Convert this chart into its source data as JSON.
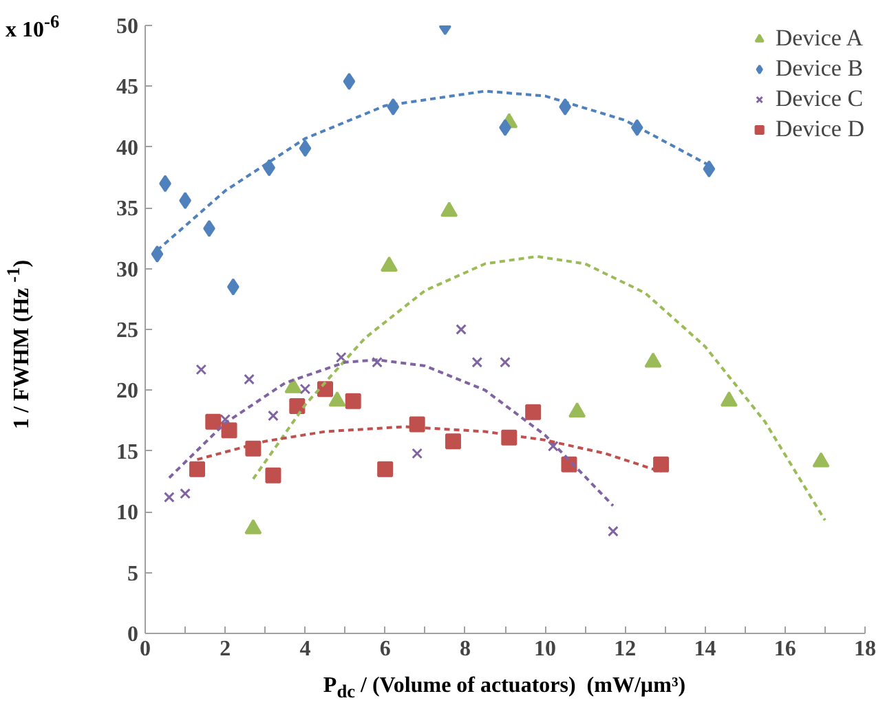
{
  "chart_data": {
    "type": "scatter",
    "xlabel": "P$_{dc}$ / (Volume of actuators)   (mW/µm³)",
    "ylabel": "1 / FWHM (Hz $^{-1}$)",
    "annotations": [
      "x 10$^{-6}$"
    ],
    "xlim": [
      0,
      18
    ],
    "ylim": [
      0,
      50
    ],
    "xticks": [
      0,
      {
        "value": 1,
        "label": null
      },
      2,
      {
        "value": 3,
        "label": null
      },
      4,
      {
        "value": 5,
        "label": null
      },
      6,
      {
        "value": 7,
        "label": null
      },
      8,
      {
        "value": 9,
        "label": null
      },
      10,
      {
        "value": 11,
        "label": null
      },
      12,
      {
        "value": 13,
        "label": null
      },
      14,
      {
        "value": 15,
        "label": null
      },
      16,
      {
        "value": 17,
        "label": null
      },
      18
    ],
    "yticks": [
      0,
      5,
      10,
      15,
      20,
      25,
      30,
      35,
      40,
      45,
      50
    ],
    "grid": false,
    "legend": "top right",
    "series": [
      {
        "name": "Device A",
        "marker": "triangle",
        "color": "#9bbb59",
        "x": [
          2.7,
          3.7,
          4.8,
          6.1,
          7.6,
          9.1,
          10.8,
          12.7,
          14.6,
          16.9
        ],
        "values": [
          8.6,
          20.2,
          19.1,
          30.2,
          34.7,
          42.0,
          18.2,
          22.3,
          19.1,
          14.1
        ]
      },
      {
        "name": "Device B",
        "marker": "diamond",
        "color": "#4f81bd",
        "x": [
          0.3,
          0.5,
          1.0,
          1.6,
          2.2,
          3.1,
          4.0,
          5.1,
          6.2,
          7.5,
          9.0,
          10.5,
          12.3,
          14.1
        ],
        "values": [
          31.2,
          37.0,
          35.6,
          33.3,
          28.5,
          38.3,
          39.9,
          45.4,
          43.3,
          49.9,
          41.6,
          43.3,
          41.6,
          38.2
        ]
      },
      {
        "name": "Device C",
        "marker": "cross",
        "color": "#8064a2",
        "x": [
          0.6,
          1.0,
          1.4,
          2.0,
          2.6,
          3.2,
          4.0,
          4.9,
          5.8,
          6.8,
          7.9,
          8.3,
          9.0,
          10.2,
          11.7
        ],
        "values": [
          11.2,
          11.5,
          21.7,
          17.6,
          20.9,
          17.9,
          20.1,
          22.7,
          22.3,
          14.8,
          25.0,
          22.3,
          22.3,
          15.4,
          8.4
        ]
      },
      {
        "name": "Device D",
        "marker": "square",
        "color": "#c0504d",
        "x": [
          1.3,
          1.7,
          2.1,
          2.7,
          3.2,
          3.8,
          4.5,
          5.2,
          6.0,
          6.8,
          7.7,
          9.1,
          9.7,
          10.6,
          12.9
        ],
        "values": [
          13.5,
          17.4,
          16.7,
          15.2,
          13.0,
          18.7,
          20.1,
          19.1,
          13.5,
          17.2,
          15.8,
          16.1,
          18.2,
          13.9,
          13.9
        ]
      },
      {
        "type": "line",
        "marker": "none",
        "line_style": "dashed",
        "color": "#9bbb59",
        "x": [
          2.7,
          4,
          5.5,
          7,
          8.5,
          9.8,
          11,
          12.5,
          14,
          15.5,
          17
        ],
        "values": [
          12.7,
          18.8,
          24.3,
          28.2,
          30.4,
          31,
          30.4,
          28,
          23.6,
          17.4,
          9.3
        ]
      },
      {
        "type": "line",
        "marker": "none",
        "line_style": "dashed",
        "color": "#4f81bd",
        "x": [
          0.3,
          2,
          4,
          6,
          8.5,
          10,
          12,
          14.1
        ],
        "values": [
          31.5,
          36.4,
          40.7,
          43.4,
          44.6,
          44.2,
          42.2,
          38.5
        ]
      },
      {
        "type": "line",
        "marker": "none",
        "line_style": "dashed",
        "color": "#8064a2",
        "x": [
          0.6,
          2,
          3.5,
          5,
          5.8,
          7,
          8.5,
          10,
          11.7
        ],
        "values": [
          12.8,
          17.3,
          20.6,
          22.3,
          22.5,
          22,
          20,
          16.3,
          10.5
        ]
      },
      {
        "type": "line",
        "marker": "none",
        "line_style": "dashed",
        "color": "#c0504d",
        "x": [
          1.3,
          3,
          4.5,
          6.5,
          8.5,
          10,
          11.5,
          12.9
        ],
        "values": [
          14.3,
          15.8,
          16.6,
          17,
          16.6,
          15.9,
          14.8,
          13.3
        ]
      }
    ]
  }
}
